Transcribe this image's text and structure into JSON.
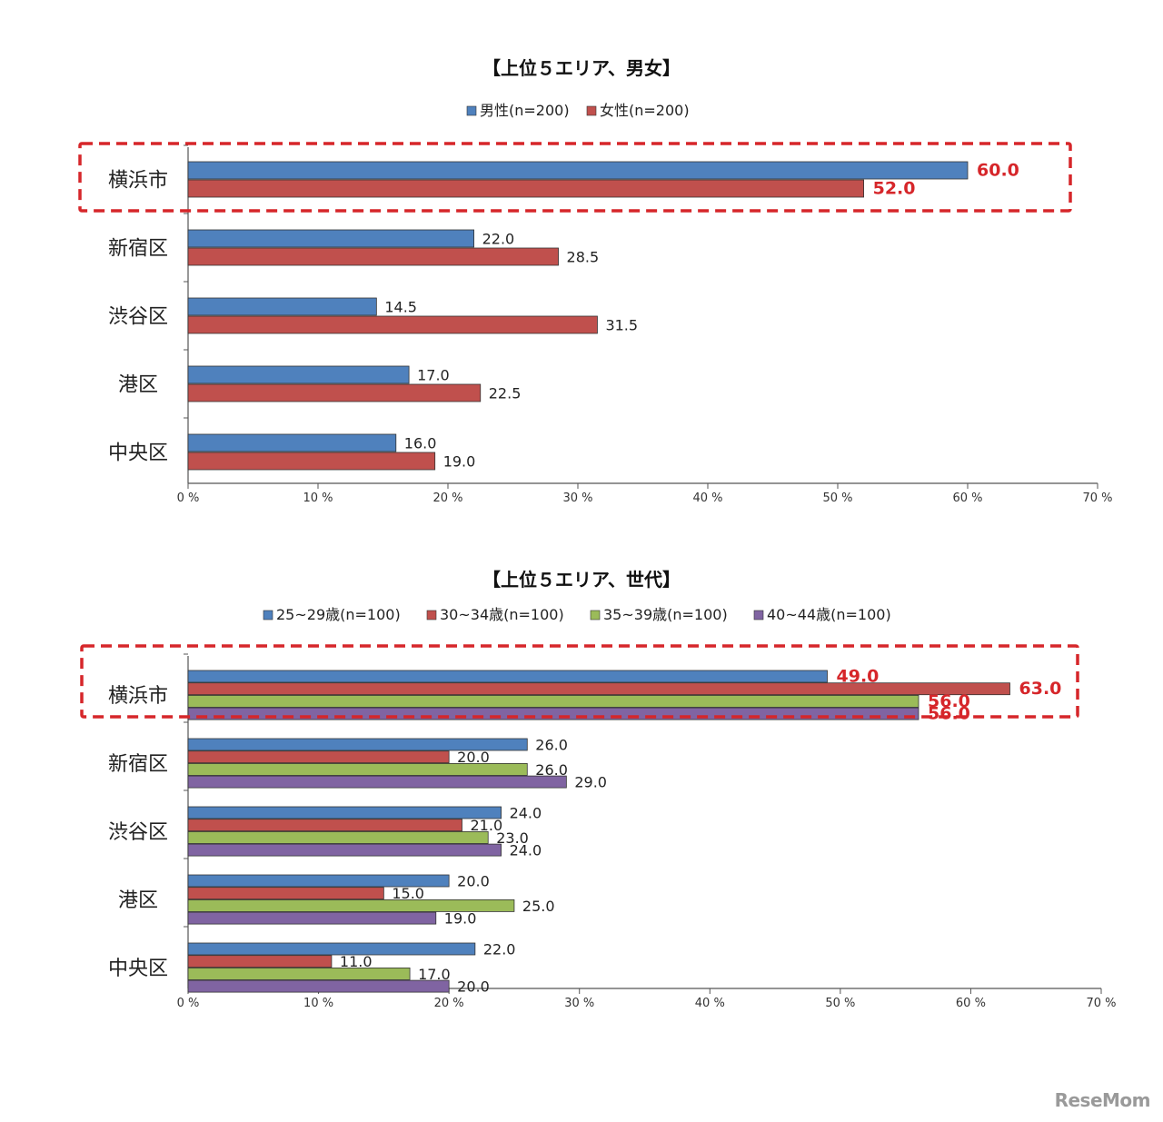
{
  "chart_data": [
    {
      "type": "bar",
      "orientation": "horizontal",
      "title": "【上位５エリア、男女】",
      "categories": [
        "横浜市",
        "新宿区",
        "渋谷区",
        "港区",
        "中央区"
      ],
      "series": [
        {
          "name": "男性(n=200)",
          "color": "#4f81bd",
          "values": [
            60.0,
            22.0,
            14.5,
            17.0,
            16.0
          ]
        },
        {
          "name": "女性(n=200)",
          "color": "#c0504d",
          "values": [
            52.0,
            28.5,
            31.5,
            22.5,
            19.0
          ]
        }
      ],
      "xlim": [
        0,
        70
      ],
      "xticks": [
        "0 %",
        "10 %",
        "20 %",
        "30 %",
        "40 %",
        "50 %",
        "60 %",
        "70 %"
      ],
      "legend_position": "top",
      "highlighted_category": "横浜市",
      "highlight_color": "#d6262a"
    },
    {
      "type": "bar",
      "orientation": "horizontal",
      "title": "【上位５エリア、世代】",
      "categories": [
        "横浜市",
        "新宿区",
        "渋谷区",
        "港区",
        "中央区"
      ],
      "series": [
        {
          "name": "25~29歳(n=100)",
          "color": "#4f81bd",
          "values": [
            49.0,
            26.0,
            24.0,
            20.0,
            22.0
          ]
        },
        {
          "name": "30~34歳(n=100)",
          "color": "#c0504d",
          "values": [
            63.0,
            20.0,
            21.0,
            15.0,
            11.0
          ]
        },
        {
          "name": "35~39歳(n=100)",
          "color": "#9bbb59",
          "values": [
            56.0,
            26.0,
            23.0,
            25.0,
            17.0
          ]
        },
        {
          "name": "40~44歳(n=100)",
          "color": "#8064a2",
          "values": [
            56.0,
            29.0,
            24.0,
            19.0,
            20.0
          ]
        }
      ],
      "xlim": [
        0,
        70
      ],
      "xticks": [
        "0 %",
        "10 %",
        "20 %",
        "30 %",
        "40 %",
        "50 %",
        "60 %",
        "70 %"
      ],
      "legend_position": "top",
      "highlighted_category": "横浜市",
      "highlight_color": "#d6262a"
    }
  ],
  "brand": {
    "logo_text": "ReseMom"
  }
}
